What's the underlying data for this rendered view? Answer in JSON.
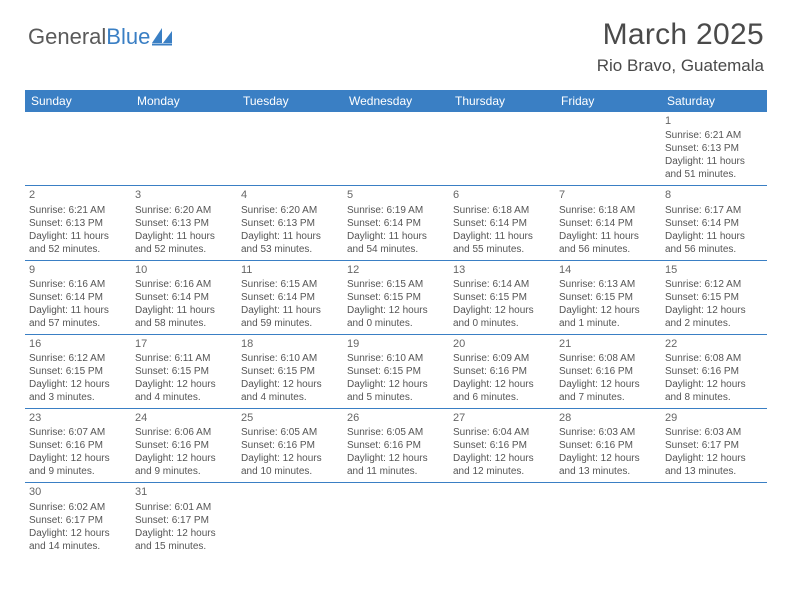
{
  "logo": {
    "word1": "General",
    "word2": "Blue",
    "color_blue": "#3a7fc4",
    "color_gray": "#5a5a5a"
  },
  "title": "March 2025",
  "location": "Rio Bravo, Guatemala",
  "header_bg": "#3a7fc4",
  "header_fg": "#ffffff",
  "divider_color": "#3a7fc4",
  "text_color": "#555555",
  "weekdays": [
    "Sunday",
    "Monday",
    "Tuesday",
    "Wednesday",
    "Thursday",
    "Friday",
    "Saturday"
  ],
  "weeks": [
    [
      null,
      null,
      null,
      null,
      null,
      null,
      {
        "n": "1",
        "sr": "Sunrise: 6:21 AM",
        "ss": "Sunset: 6:13 PM",
        "dl": "Daylight: 11 hours and 51 minutes."
      }
    ],
    [
      {
        "n": "2",
        "sr": "Sunrise: 6:21 AM",
        "ss": "Sunset: 6:13 PM",
        "dl": "Daylight: 11 hours and 52 minutes."
      },
      {
        "n": "3",
        "sr": "Sunrise: 6:20 AM",
        "ss": "Sunset: 6:13 PM",
        "dl": "Daylight: 11 hours and 52 minutes."
      },
      {
        "n": "4",
        "sr": "Sunrise: 6:20 AM",
        "ss": "Sunset: 6:13 PM",
        "dl": "Daylight: 11 hours and 53 minutes."
      },
      {
        "n": "5",
        "sr": "Sunrise: 6:19 AM",
        "ss": "Sunset: 6:14 PM",
        "dl": "Daylight: 11 hours and 54 minutes."
      },
      {
        "n": "6",
        "sr": "Sunrise: 6:18 AM",
        "ss": "Sunset: 6:14 PM",
        "dl": "Daylight: 11 hours and 55 minutes."
      },
      {
        "n": "7",
        "sr": "Sunrise: 6:18 AM",
        "ss": "Sunset: 6:14 PM",
        "dl": "Daylight: 11 hours and 56 minutes."
      },
      {
        "n": "8",
        "sr": "Sunrise: 6:17 AM",
        "ss": "Sunset: 6:14 PM",
        "dl": "Daylight: 11 hours and 56 minutes."
      }
    ],
    [
      {
        "n": "9",
        "sr": "Sunrise: 6:16 AM",
        "ss": "Sunset: 6:14 PM",
        "dl": "Daylight: 11 hours and 57 minutes."
      },
      {
        "n": "10",
        "sr": "Sunrise: 6:16 AM",
        "ss": "Sunset: 6:14 PM",
        "dl": "Daylight: 11 hours and 58 minutes."
      },
      {
        "n": "11",
        "sr": "Sunrise: 6:15 AM",
        "ss": "Sunset: 6:14 PM",
        "dl": "Daylight: 11 hours and 59 minutes."
      },
      {
        "n": "12",
        "sr": "Sunrise: 6:15 AM",
        "ss": "Sunset: 6:15 PM",
        "dl": "Daylight: 12 hours and 0 minutes."
      },
      {
        "n": "13",
        "sr": "Sunrise: 6:14 AM",
        "ss": "Sunset: 6:15 PM",
        "dl": "Daylight: 12 hours and 0 minutes."
      },
      {
        "n": "14",
        "sr": "Sunrise: 6:13 AM",
        "ss": "Sunset: 6:15 PM",
        "dl": "Daylight: 12 hours and 1 minute."
      },
      {
        "n": "15",
        "sr": "Sunrise: 6:12 AM",
        "ss": "Sunset: 6:15 PM",
        "dl": "Daylight: 12 hours and 2 minutes."
      }
    ],
    [
      {
        "n": "16",
        "sr": "Sunrise: 6:12 AM",
        "ss": "Sunset: 6:15 PM",
        "dl": "Daylight: 12 hours and 3 minutes."
      },
      {
        "n": "17",
        "sr": "Sunrise: 6:11 AM",
        "ss": "Sunset: 6:15 PM",
        "dl": "Daylight: 12 hours and 4 minutes."
      },
      {
        "n": "18",
        "sr": "Sunrise: 6:10 AM",
        "ss": "Sunset: 6:15 PM",
        "dl": "Daylight: 12 hours and 4 minutes."
      },
      {
        "n": "19",
        "sr": "Sunrise: 6:10 AM",
        "ss": "Sunset: 6:15 PM",
        "dl": "Daylight: 12 hours and 5 minutes."
      },
      {
        "n": "20",
        "sr": "Sunrise: 6:09 AM",
        "ss": "Sunset: 6:16 PM",
        "dl": "Daylight: 12 hours and 6 minutes."
      },
      {
        "n": "21",
        "sr": "Sunrise: 6:08 AM",
        "ss": "Sunset: 6:16 PM",
        "dl": "Daylight: 12 hours and 7 minutes."
      },
      {
        "n": "22",
        "sr": "Sunrise: 6:08 AM",
        "ss": "Sunset: 6:16 PM",
        "dl": "Daylight: 12 hours and 8 minutes."
      }
    ],
    [
      {
        "n": "23",
        "sr": "Sunrise: 6:07 AM",
        "ss": "Sunset: 6:16 PM",
        "dl": "Daylight: 12 hours and 9 minutes."
      },
      {
        "n": "24",
        "sr": "Sunrise: 6:06 AM",
        "ss": "Sunset: 6:16 PM",
        "dl": "Daylight: 12 hours and 9 minutes."
      },
      {
        "n": "25",
        "sr": "Sunrise: 6:05 AM",
        "ss": "Sunset: 6:16 PM",
        "dl": "Daylight: 12 hours and 10 minutes."
      },
      {
        "n": "26",
        "sr": "Sunrise: 6:05 AM",
        "ss": "Sunset: 6:16 PM",
        "dl": "Daylight: 12 hours and 11 minutes."
      },
      {
        "n": "27",
        "sr": "Sunrise: 6:04 AM",
        "ss": "Sunset: 6:16 PM",
        "dl": "Daylight: 12 hours and 12 minutes."
      },
      {
        "n": "28",
        "sr": "Sunrise: 6:03 AM",
        "ss": "Sunset: 6:16 PM",
        "dl": "Daylight: 12 hours and 13 minutes."
      },
      {
        "n": "29",
        "sr": "Sunrise: 6:03 AM",
        "ss": "Sunset: 6:17 PM",
        "dl": "Daylight: 12 hours and 13 minutes."
      }
    ],
    [
      {
        "n": "30",
        "sr": "Sunrise: 6:02 AM",
        "ss": "Sunset: 6:17 PM",
        "dl": "Daylight: 12 hours and 14 minutes."
      },
      {
        "n": "31",
        "sr": "Sunrise: 6:01 AM",
        "ss": "Sunset: 6:17 PM",
        "dl": "Daylight: 12 hours and 15 minutes."
      },
      null,
      null,
      null,
      null,
      null
    ]
  ]
}
